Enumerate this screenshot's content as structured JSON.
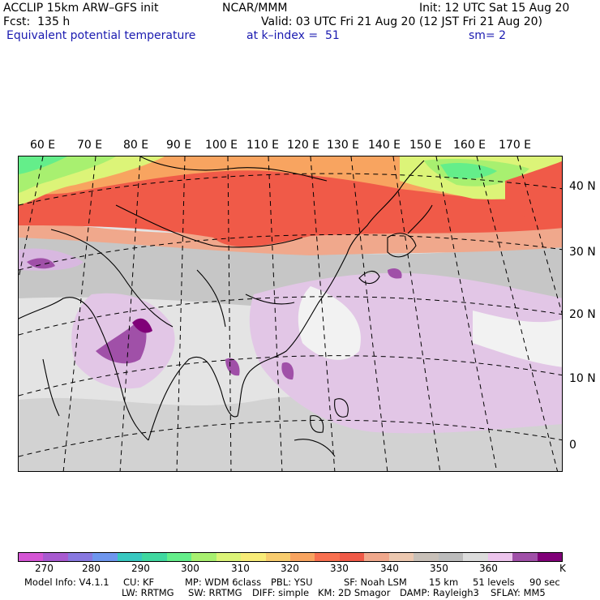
{
  "header": {
    "model_title": "ACCLIP 15km ARW–GFS init",
    "center": "NCAR/MMM",
    "init": "Init: 12 UTC Sat 15 Aug 20",
    "forecast": "Fcst:  135 h",
    "valid": "Valid: 03 UTC Fri 21 Aug 20 (12 JST Fri 21 Aug 20)",
    "field": "Equivalent potential temperature",
    "level": "at k–index =  51",
    "smooth": "sm= 2"
  },
  "map": {
    "lon_labels": [
      "60 E",
      "70 E",
      "80 E",
      "90 E",
      "100 E",
      "110 E",
      "120 E",
      "130 E",
      "140 E",
      "150 E",
      "160 E",
      "170 E"
    ],
    "lat_labels": [
      "40 N",
      "30 N",
      "20 N",
      "10 N",
      "0"
    ]
  },
  "colorbar": {
    "colors": [
      "#d455d4",
      "#a85ad0",
      "#8878e0",
      "#6e96ee",
      "#38c8c0",
      "#40d8a0",
      "#64ee8a",
      "#a8f070",
      "#dcf478",
      "#f8ec78",
      "#f8cc6e",
      "#f8a460",
      "#f87050",
      "#f05a48",
      "#f0a88c",
      "#ecc8b0",
      "#c8c0b8",
      "#bcbcbc",
      "#dcdcdc",
      "#ecc4ec",
      "#a050a8",
      "#800078"
    ],
    "tick_labels": [
      "270",
      "280",
      "290",
      "300",
      "310",
      "320",
      "330",
      "340",
      "350",
      "360"
    ],
    "unit": "K"
  },
  "footer": {
    "line1": [
      "Model Info: V4.1.1",
      "CU: KF",
      "MP: WDM 6class",
      "PBL: YSU",
      "SF: Noah LSM",
      "15 km",
      "51 levels",
      "90 sec"
    ],
    "line2": [
      "LW: RRTMG",
      "SW: RRTMG",
      "DIFF: simple",
      "KM: 2D Smagor",
      "DAMP: Rayleigh3",
      "SFLAY: MM5"
    ]
  }
}
